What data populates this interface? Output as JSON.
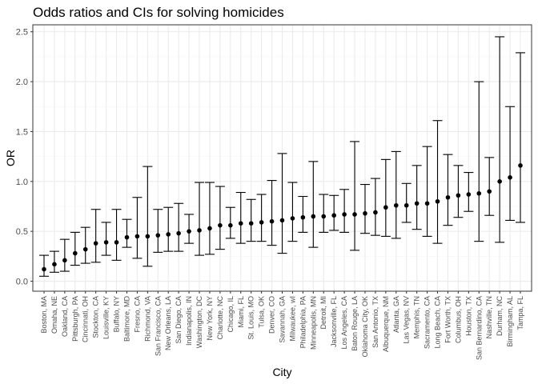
{
  "chart_data": {
    "type": "scatter",
    "title": "Odds ratios and CIs for solving homicides",
    "xlabel": "City",
    "ylabel": "OR",
    "ylim": [
      -0.1,
      2.57
    ],
    "yticks": [
      0.0,
      0.5,
      1.0,
      1.5,
      2.0,
      2.5
    ],
    "ytick_labels": [
      "0.0",
      "0.5",
      "1.0",
      "1.5",
      "2.0",
      "2.5"
    ],
    "grid": true,
    "colors": {
      "point": "#000000",
      "errorbar": "#000000",
      "panel_bg": "#ffffff",
      "grid_major": "#ebebeb",
      "grid_minor": "#f5f5f5",
      "border": "#333333"
    },
    "categories": [
      "Boston, MA",
      "Omaha, NE",
      "Oakland, CA",
      "Pittsburgh, PA",
      "Cincinnati, OH",
      "Stockton, CA",
      "Louisville, KY",
      "Buffalo, NY",
      "Baltimore, MD",
      "Fresno, CA",
      "Richmond, VA",
      "San Francisco, CA",
      "New Orleans, LA",
      "San Diego, CA",
      "Indianapolis, IN",
      "Washington, DC",
      "New York, NY",
      "Charlotte, NC",
      "Chicago, IL",
      "Miami, FL",
      "St. Louis, MO",
      "Tulsa, OK",
      "Denver, CO",
      "Savannah, GA",
      "Milwaukee, wI",
      "Philadelphia, PA",
      "Minneapolis, MN",
      "Detroit, MI",
      "Jacksonville, FL",
      "Los Angeles, CA",
      "Baton Rouge, LA",
      "Oklahoma City, OK",
      "San Antonio, TX",
      "Albuquerque, NM",
      "Atlanta, GA",
      "Las Vegas, NV",
      "Memphis, TN",
      "Sacramento, CA",
      "Long Beach, CA",
      "Fort Worth, TX",
      "Columbus, OH",
      "Houston, TX",
      "San Bernardino, CA",
      "Nashville, TN",
      "Durham, NC",
      "Birmingham, AL",
      "Tampa, FL"
    ],
    "or": [
      0.12,
      0.17,
      0.21,
      0.28,
      0.32,
      0.38,
      0.39,
      0.39,
      0.44,
      0.45,
      0.45,
      0.46,
      0.47,
      0.48,
      0.5,
      0.51,
      0.53,
      0.56,
      0.56,
      0.58,
      0.58,
      0.59,
      0.6,
      0.61,
      0.63,
      0.64,
      0.65,
      0.65,
      0.66,
      0.67,
      0.67,
      0.68,
      0.69,
      0.74,
      0.76,
      0.76,
      0.78,
      0.78,
      0.8,
      0.84,
      0.86,
      0.87,
      0.88,
      0.9,
      1.0,
      1.04,
      1.16
    ],
    "ci_low": [
      0.05,
      0.09,
      0.1,
      0.16,
      0.18,
      0.19,
      0.26,
      0.21,
      0.34,
      0.23,
      0.15,
      0.29,
      0.3,
      0.3,
      0.38,
      0.26,
      0.27,
      0.32,
      0.43,
      0.38,
      0.4,
      0.4,
      0.36,
      0.28,
      0.4,
      0.49,
      0.34,
      0.49,
      0.51,
      0.49,
      0.31,
      0.48,
      0.46,
      0.45,
      0.43,
      0.59,
      0.52,
      0.45,
      0.38,
      0.56,
      0.64,
      0.7,
      0.4,
      0.66,
      0.39,
      0.61,
      0.59
    ],
    "ci_high": [
      0.26,
      0.3,
      0.42,
      0.49,
      0.54,
      0.72,
      0.59,
      0.72,
      0.62,
      0.84,
      1.15,
      0.72,
      0.74,
      0.78,
      0.67,
      0.99,
      0.99,
      0.95,
      0.74,
      0.89,
      0.82,
      0.87,
      1.01,
      1.28,
      0.99,
      0.85,
      1.2,
      0.87,
      0.86,
      0.92,
      1.4,
      0.97,
      1.03,
      1.22,
      1.3,
      0.98,
      1.16,
      1.35,
      1.61,
      1.27,
      1.16,
      1.09,
      2.0,
      1.24,
      2.45,
      1.75,
      2.29
    ]
  }
}
